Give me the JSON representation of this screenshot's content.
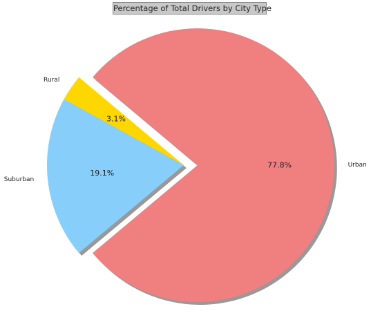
{
  "chart_data": {
    "type": "pie",
    "title": "Percentage of Total Drivers by City Type",
    "start_angle_deg": 140,
    "explode": [
      0,
      0,
      0.1
    ],
    "shadow": true,
    "slices": [
      {
        "label": "Rural",
        "value": 3.1,
        "pct_label": "3.1%",
        "color": "#FFD700"
      },
      {
        "label": "Suburban",
        "value": 19.1,
        "pct_label": "19.1%",
        "color": "#87CEFA"
      },
      {
        "label": "Urban",
        "value": 77.8,
        "pct_label": "77.8%",
        "color": "#F08080"
      }
    ]
  }
}
